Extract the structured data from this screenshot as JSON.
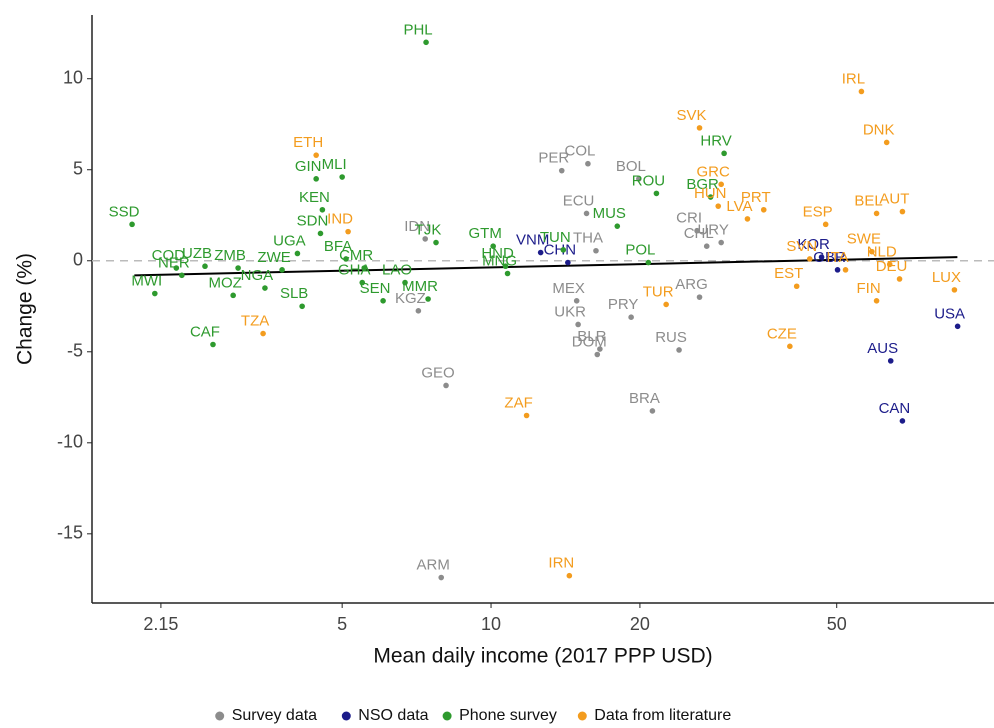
{
  "chart_data": {
    "type": "scatter",
    "x_label": "Mean daily income (2017 PPP USD)",
    "y_label": "Change (%)",
    "log_x": true,
    "xlim": [
      1.56,
      104
    ],
    "ylim": [
      -18.8,
      13.5
    ],
    "xticks": [
      2.15,
      5,
      10,
      20,
      50
    ],
    "yticks": [
      -15,
      -10,
      -5,
      0,
      5,
      10
    ],
    "zero_line": 0,
    "legend": "bottom",
    "series": [
      {
        "name": "Survey data",
        "color": "#8c8c8c",
        "labels": [
          "COL",
          "PER",
          "BOL",
          "ECU",
          "IDN",
          "THA",
          "CRI",
          "URY",
          "CHL",
          "MEX",
          "UKR",
          "KGZ",
          "BLR",
          "PRY",
          "ARG",
          "RUS",
          "DOM",
          "GEO",
          "BRA",
          "ARM"
        ],
        "x": [
          15.7,
          13.9,
          19.9,
          15.6,
          7.36,
          16.3,
          26.1,
          29.2,
          27.3,
          14.9,
          15.0,
          7.13,
          16.6,
          19.2,
          26.4,
          24.0,
          16.4,
          8.11,
          21.2,
          7.93
        ],
        "values": [
          5.33,
          4.95,
          4.5,
          2.6,
          1.2,
          0.55,
          1.65,
          1.0,
          0.8,
          -2.2,
          -3.5,
          -2.75,
          -4.85,
          -3.1,
          -2.0,
          -4.9,
          -5.15,
          -6.85,
          -8.25,
          -17.4
        ]
      },
      {
        "name": "NSO data",
        "color": "#1c1c8a",
        "labels": [
          "VNM",
          "CHN",
          "KOR",
          "GBR",
          "USA",
          "AUS",
          "CAN"
        ],
        "x": [
          12.6,
          14.3,
          46.6,
          50.2,
          87.8,
          64.3,
          67.9
        ],
        "values": [
          0.45,
          -0.1,
          0.2,
          -0.5,
          -3.6,
          -5.5,
          -8.8
        ]
      },
      {
        "name": "Phone survey",
        "color": "#2e9a2e",
        "labels": [
          "PHL",
          "HRV",
          "ROU",
          "BGR",
          "MUS",
          "GIN",
          "MLI",
          "KEN",
          "SDN",
          "SSD",
          "COD",
          "UZB",
          "UGA",
          "BFA",
          "GTM",
          "TJK",
          "TUN",
          "HND",
          "POL",
          "MNG",
          "NER",
          "ZMB",
          "ZWE",
          "CMR",
          "MWI",
          "MOZ",
          "NGA",
          "GHA",
          "LAO",
          "SEN",
          "MMR",
          "SLB",
          "CAF"
        ],
        "x": [
          7.39,
          29.6,
          21.6,
          27.8,
          18.0,
          4.43,
          5.0,
          4.56,
          4.52,
          1.88,
          2.31,
          2.64,
          4.06,
          5.09,
          10.1,
          7.74,
          14.0,
          10.7,
          20.8,
          10.8,
          2.37,
          3.08,
          3.78,
          5.54,
          2.09,
          3.01,
          3.49,
          5.49,
          6.7,
          6.05,
          7.46,
          4.15,
          2.74
        ],
        "values": [
          12.0,
          5.9,
          3.7,
          3.5,
          1.9,
          4.5,
          4.6,
          2.8,
          1.5,
          2.0,
          -0.4,
          -0.3,
          0.4,
          0.1,
          0.8,
          1.0,
          0.6,
          -0.3,
          -0.1,
          -0.7,
          -0.8,
          -0.4,
          -0.5,
          -0.4,
          -1.8,
          -1.9,
          -1.5,
          -1.2,
          -1.2,
          -2.2,
          -2.1,
          -2.5,
          -4.6
        ]
      },
      {
        "name": "Data from literature",
        "color": "#f39c1e",
        "labels": [
          "IRL",
          "DNK",
          "SVK",
          "ETH",
          "GRC",
          "HUN",
          "PRT",
          "LVA",
          "ESP",
          "BEL",
          "AUT",
          "IND",
          "SWE",
          "ITA",
          "NLD",
          "SVN",
          "DEU",
          "EST",
          "FIN",
          "LUX",
          "TUR",
          "TZA",
          "CZE",
          "ZAF",
          "IRN"
        ],
        "x": [
          56.1,
          63.1,
          26.4,
          4.43,
          29.2,
          28.8,
          35.6,
          33.0,
          47.5,
          60.2,
          67.9,
          5.14,
          58.9,
          52.1,
          64.0,
          44.1,
          67.0,
          41.5,
          60.2,
          86.5,
          22.6,
          3.46,
          40.2,
          11.8,
          14.4
        ],
        "values": [
          9.3,
          6.5,
          7.3,
          5.8,
          4.2,
          3.0,
          2.8,
          2.3,
          2.0,
          2.6,
          2.7,
          1.6,
          0.5,
          -0.5,
          -0.2,
          0.1,
          -1.0,
          -1.4,
          -2.2,
          -1.6,
          -2.4,
          -4.0,
          -4.7,
          -8.5,
          -17.3
        ]
      }
    ],
    "trend": {
      "color": "#000000",
      "x": [
        1.9,
        87.7
      ],
      "values": [
        -0.8,
        0.2
      ]
    }
  }
}
